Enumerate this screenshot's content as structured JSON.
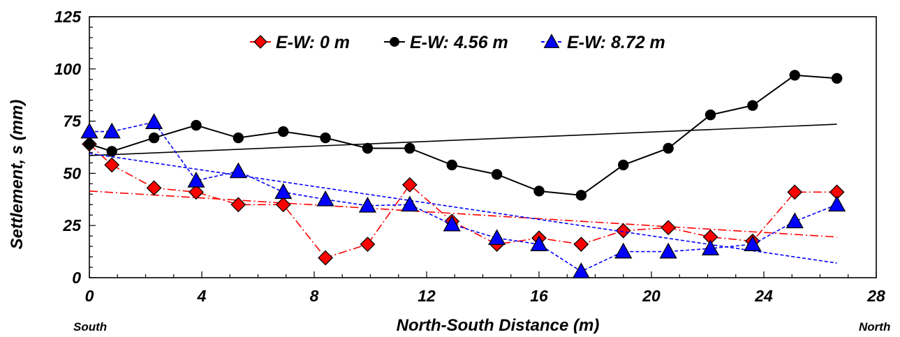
{
  "chart_data": {
    "type": "scatter",
    "xlabel": "North-South Distance (m)",
    "ylabel": "Settlement, s (mm)",
    "xlim": [
      0,
      28
    ],
    "ylim": [
      0,
      125
    ],
    "x_ticks": [
      0,
      4,
      8,
      12,
      16,
      20,
      24,
      28
    ],
    "y_ticks": [
      0,
      25,
      50,
      75,
      100,
      125
    ],
    "x_tick_labels": [
      "0",
      "4",
      "8",
      "12",
      "16",
      "20",
      "24",
      "28"
    ],
    "y_tick_labels": [
      "0",
      "25",
      "50",
      "75",
      "100",
      "125"
    ],
    "direction_labels": {
      "left": "South",
      "right": "North"
    },
    "grid": false,
    "legend_position": "top-center",
    "series": [
      {
        "name": "E-W: 0 m",
        "color": "#ff0000",
        "marker": "diamond",
        "line_style": "dash-dot",
        "x": [
          0,
          0.8,
          2.3,
          3.8,
          5.3,
          6.9,
          8.4,
          9.9,
          11.4,
          12.9,
          14.5,
          16.0,
          17.5,
          19.0,
          20.6,
          22.1,
          23.6,
          25.1,
          26.6
        ],
        "y": [
          64,
          54,
          43,
          41,
          35,
          35,
          9.5,
          16,
          44.5,
          27,
          16,
          19,
          16,
          22.5,
          24,
          19.5,
          17.5,
          41,
          41
        ],
        "trend": {
          "x": [
            0,
            26.6
          ],
          "y": [
            41.5,
            19.5
          ]
        }
      },
      {
        "name": "E-W: 4.56 m",
        "color": "#000000",
        "marker": "circle",
        "line_style": "solid",
        "x": [
          0,
          0.8,
          2.3,
          3.8,
          5.3,
          6.9,
          8.4,
          9.9,
          11.4,
          12.9,
          14.5,
          16.0,
          17.5,
          19.0,
          20.6,
          22.1,
          23.6,
          25.1,
          26.6
        ],
        "y": [
          64,
          60.5,
          67,
          73,
          67,
          70,
          67,
          62,
          62,
          54,
          49.5,
          41.5,
          39.5,
          54,
          62,
          78,
          82.5,
          97,
          95.5
        ],
        "trend": {
          "x": [
            0,
            26.6
          ],
          "y": [
            58.5,
            73.5
          ]
        }
      },
      {
        "name": "E-W: 8.72 m",
        "color": "#0000ff",
        "marker": "triangle",
        "line_style": "dashed",
        "x": [
          0,
          0.8,
          2.3,
          3.8,
          5.3,
          6.9,
          8.4,
          9.9,
          11.4,
          12.9,
          14.5,
          16.0,
          17.5,
          19.0,
          20.6,
          22.1,
          23.6,
          25.1,
          26.6
        ],
        "y": [
          70,
          70,
          74.5,
          46.5,
          51,
          41,
          37.5,
          34.5,
          35,
          25.5,
          19,
          16,
          3,
          12.5,
          12.5,
          14,
          16,
          27,
          35
        ],
        "trend": {
          "x": [
            0,
            26.6
          ],
          "y": [
            59.5,
            7
          ]
        }
      }
    ]
  }
}
